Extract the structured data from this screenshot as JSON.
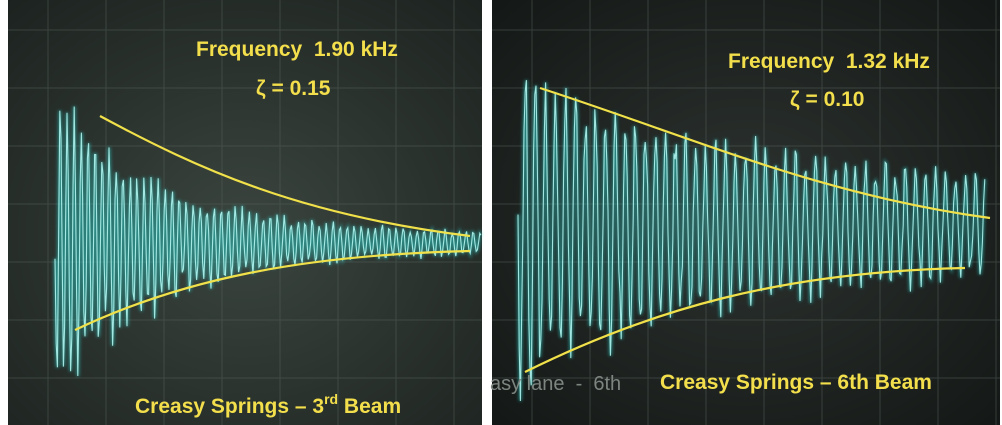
{
  "panels": [
    {
      "frequency": "Frequency  1.90 kHz",
      "damping": "ζ = 0.15",
      "caption": {
        "before": "Creasy Springs – 3",
        "sup": "rd",
        "after": " Beam"
      }
    },
    {
      "frequency": "Frequency  1.32 kHz",
      "damping": "ζ = 0.10",
      "ghost": "asy lane  -  6th",
      "caption": {
        "before": "Creasy Springs – 6th Beam"
      }
    }
  ]
}
